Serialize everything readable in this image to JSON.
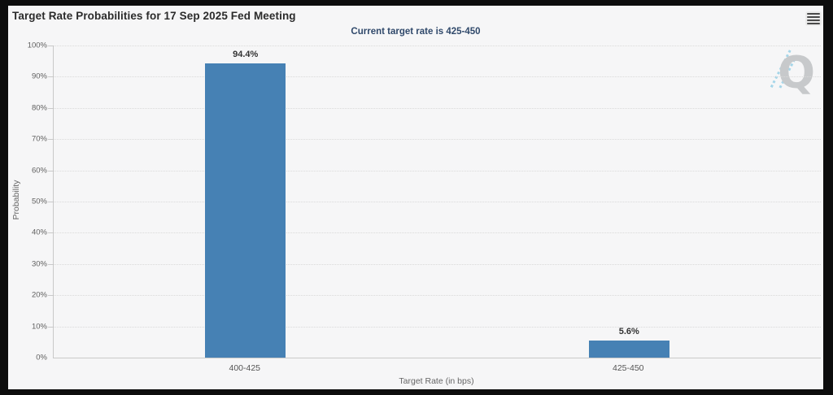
{
  "header": {
    "title": "Target Rate Probabilities for 17 Sep 2025 Fed Meeting",
    "subtitle": "Current target rate is 425-450",
    "menu_icon": "hamburger-icon"
  },
  "watermark": {
    "letter": "Q"
  },
  "chart_data": {
    "type": "bar",
    "title": "Target Rate Probabilities for 17 Sep 2025 Fed Meeting",
    "subtitle": "Current target rate is 425-450",
    "categories": [
      "400-425",
      "425-450"
    ],
    "values": [
      94.4,
      5.6
    ],
    "value_labels": [
      "94.4%",
      "5.6%"
    ],
    "xlabel": "Target Rate (in bps)",
    "ylabel": "Probability",
    "ylim": [
      0,
      100
    ],
    "ytick_step": 10,
    "ytick_labels": [
      "0%",
      "10%",
      "20%",
      "30%",
      "40%",
      "50%",
      "60%",
      "70%",
      "80%",
      "90%",
      "100%"
    ],
    "grid": "horizontal-dotted",
    "legend": "none",
    "bar_color": "#4681b4"
  },
  "colors": {
    "bar": "#4681b4",
    "subtitle_text": "#30496b",
    "content_background": "#f6f6f7",
    "frame": "#0d0d0d",
    "gridline": "#dadada"
  }
}
